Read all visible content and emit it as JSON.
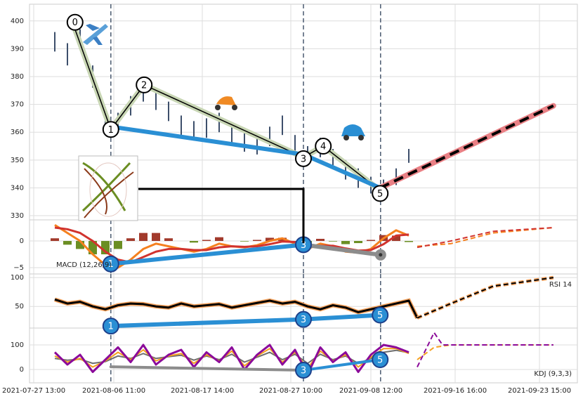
{
  "chart_data": [
    {
      "type": "ohlc",
      "xlim": [
        0,
        130
      ],
      "ylim": [
        328.5,
        406
      ],
      "xticks": [
        {
          "value": 1,
          "label": "2021-07-27 13:00"
        },
        {
          "value": 20,
          "label": "2021-08-06 11:00"
        },
        {
          "value": 41,
          "label": "2021-08-17 14:00"
        },
        {
          "value": 62,
          "label": "2021-08-27 10:00"
        },
        {
          "value": 81,
          "label": "2021-09-08 12:00"
        },
        {
          "value": 101,
          "label": "2021-09-16 16:00"
        },
        {
          "value": 121,
          "label": "2021-09-23 15:00"
        }
      ],
      "yticks": [
        330,
        340,
        350,
        360,
        370,
        380,
        390,
        400
      ],
      "vlines": [
        19.3,
        65,
        83.3
      ],
      "color": "#3d4f6b",
      "x": [
        6,
        9,
        12,
        15,
        18,
        21,
        24,
        27,
        30,
        33,
        36,
        39,
        42,
        45,
        48,
        51,
        54,
        57,
        60,
        63,
        66,
        69,
        72,
        75,
        78,
        81,
        84,
        87,
        90
      ],
      "high": [
        396,
        392,
        397,
        384,
        369,
        367,
        373,
        378,
        375,
        371,
        366,
        364,
        365,
        367,
        363,
        360,
        359,
        362,
        366,
        359,
        355,
        358,
        354,
        350,
        347,
        344,
        343,
        347,
        354
      ],
      "low": [
        389,
        384,
        390,
        376,
        362,
        360,
        366,
        371,
        368,
        364,
        359,
        357,
        358,
        360,
        356,
        353,
        352,
        355,
        359,
        352,
        348,
        351,
        347,
        343,
        340,
        338,
        337,
        341,
        349
      ],
      "lines": [
        {
          "color": "#c8d6b4",
          "width": 8,
          "inner": "#000000",
          "x": [
            10.8,
            19.3,
            27.2,
            65,
            69.7,
            83.2
          ],
          "y": [
            397,
            361,
            377,
            351,
            355,
            339
          ]
        },
        {
          "color": "#2a8fd4",
          "width": 6,
          "x": [
            19.3,
            65,
            83.2
          ],
          "y": [
            362,
            352,
            340
          ]
        },
        {
          "color": "#e98085",
          "width": 8,
          "inner": "#000000",
          "inner_dash": true,
          "x": [
            83.2,
            124.3
          ],
          "y": [
            340,
            369.5
          ]
        }
      ],
      "markers": [
        {
          "label": "0",
          "x": 10.8,
          "y": 399.5,
          "fill": "#ffffff",
          "stroke": "#000000"
        },
        {
          "label": "1",
          "x": 19.3,
          "y": 361,
          "fill": "#ffffff",
          "stroke": "#000000"
        },
        {
          "label": "2",
          "x": 27.2,
          "y": 377,
          "fill": "#ffffff",
          "stroke": "#000000"
        },
        {
          "label": "3",
          "x": 65,
          "y": 350.5,
          "fill": "#ffffff",
          "stroke": "#000000"
        },
        {
          "label": "4",
          "x": 69.7,
          "y": 355,
          "fill": "#ffffff",
          "stroke": "#000000"
        },
        {
          "label": "5",
          "x": 83.2,
          "y": 338,
          "fill": "#ffffff",
          "stroke": "#000000"
        }
      ]
    },
    {
      "type": "indicator",
      "label": "MACD (12,26,9)",
      "label_corner": "lower left",
      "ylim": [
        -6.18,
        3.95
      ],
      "yticks": [
        0,
        {
          "value": -5,
          "label": "−5"
        }
      ],
      "bars": {
        "x": [
          6,
          9,
          12,
          15,
          18,
          21,
          24,
          27,
          30,
          33,
          36,
          39,
          42,
          45,
          48,
          51,
          54,
          57,
          60,
          63,
          66,
          69,
          72,
          75,
          78,
          81,
          84,
          87,
          90
        ],
        "values": [
          0.5,
          -0.7,
          -1.5,
          -2.5,
          -2.5,
          -1.5,
          0.5,
          1.5,
          1.5,
          0.5,
          0,
          -0.3,
          0.2,
          0.7,
          0,
          -0.1,
          0.2,
          0.6,
          0.6,
          -0.3,
          -0.7,
          0.4,
          -0.1,
          -0.6,
          -0.4,
          0.2,
          1.1,
          1,
          -0.2
        ],
        "up_color": "#a23a2c",
        "down_color": "#6b8e23"
      },
      "series": [
        {
          "color": "#f5801e",
          "width": 3,
          "x": [
            6,
            9,
            12,
            15,
            18,
            21,
            24,
            27,
            30,
            33,
            36,
            39,
            42,
            45,
            48,
            51,
            54,
            57,
            60,
            63,
            66,
            69,
            72,
            75,
            78,
            81,
            84,
            87,
            90
          ],
          "values": [
            3,
            1.5,
            0,
            -2.5,
            -4.5,
            -5,
            -3.5,
            -1.5,
            -0.5,
            -1,
            -1.5,
            -2,
            -1.5,
            -0.5,
            -1,
            -1.2,
            -0.8,
            0,
            0.5,
            -0.5,
            -1.5,
            -0.5,
            -1,
            -2,
            -2.2,
            -1.5,
            0.5,
            2,
            1
          ]
        },
        {
          "color": "#d1332e",
          "width": 3,
          "x": [
            6,
            9,
            12,
            15,
            18,
            21,
            24,
            27,
            30,
            33,
            36,
            39,
            42,
            45,
            48,
            51,
            54,
            57,
            60,
            63,
            66,
            69,
            72,
            75,
            78,
            81,
            84,
            87,
            90
          ],
          "values": [
            2.5,
            2.2,
            1.5,
            0,
            -2,
            -3.5,
            -4,
            -3,
            -2,
            -1.5,
            -1.5,
            -1.7,
            -1.7,
            -1.2,
            -1,
            -1.1,
            -1,
            -0.6,
            -0.1,
            -0.2,
            -0.8,
            -0.9,
            -0.9,
            -1.4,
            -1.8,
            -1.7,
            -0.6,
            1,
            1.2
          ]
        },
        {
          "color": "#f5801e",
          "width": 2,
          "dash": true,
          "x": [
            92,
            100,
            110,
            124.3
          ],
          "values": [
            -1,
            -0.5,
            1.5,
            2.5
          ]
        },
        {
          "color": "#d1332e",
          "width": 2,
          "dash": true,
          "x": [
            92,
            100,
            110,
            124.3
          ],
          "values": [
            -1.2,
            0,
            1.8,
            2.5
          ]
        }
      ],
      "lines": [
        {
          "color": "#2a8fd4",
          "width": 6,
          "x": [
            19.3,
            65
          ],
          "y": [
            -4.3,
            -0.7
          ]
        },
        {
          "color": "#8c8c8c",
          "width": 6,
          "x": [
            65,
            83.3
          ],
          "y": [
            -0.7,
            -2.6
          ]
        }
      ],
      "markers": [
        {
          "label": "1",
          "x": 19.3,
          "y": -4.3,
          "fill": "#2a8fd4",
          "stroke": "#1c3f8a"
        },
        {
          "label": "3",
          "x": 65,
          "y": -0.7,
          "fill": "#2a8fd4",
          "stroke": "#1c3f8a"
        },
        {
          "x": 83.3,
          "y": -2.6,
          "fill": "#8c8c8c",
          "stroke": "#8c8c8c",
          "dot": true
        }
      ]
    },
    {
      "type": "indicator",
      "label": "RSI 14",
      "label_corner": "upper right",
      "ylim": [
        12.5,
        106.25
      ],
      "yticks": [
        50,
        100
      ],
      "series": [
        {
          "color": "#000000",
          "halo": "#f5a25d",
          "width": 3,
          "x": [
            6,
            9,
            12,
            15,
            18,
            21,
            24,
            27,
            30,
            33,
            36,
            39,
            42,
            45,
            48,
            51,
            54,
            57,
            60,
            63,
            66,
            69,
            72,
            75,
            78,
            81,
            84,
            87,
            90,
            92
          ],
          "values": [
            62,
            55,
            58,
            50,
            45,
            52,
            55,
            54,
            50,
            48,
            55,
            50,
            52,
            54,
            48,
            52,
            56,
            60,
            55,
            58,
            50,
            45,
            52,
            48,
            40,
            45,
            50,
            55,
            60,
            30
          ]
        },
        {
          "color": "#000000",
          "halo": "#f5a25d",
          "width": 2,
          "dash": true,
          "x": [
            92,
            100,
            110,
            124.3
          ],
          "values": [
            30,
            55,
            85,
            100
          ]
        }
      ],
      "lines": [
        {
          "color": "#2a8fd4",
          "width": 6,
          "x": [
            19.3,
            65,
            83.2
          ],
          "y": [
            16,
            27.5,
            35
          ]
        }
      ],
      "markers": [
        {
          "label": "1",
          "x": 19.3,
          "y": 16,
          "fill": "#2a8fd4",
          "stroke": "#1c3f8a"
        },
        {
          "label": "3",
          "x": 65,
          "y": 27.5,
          "fill": "#2a8fd4",
          "stroke": "#1c3f8a"
        },
        {
          "label": "5",
          "x": 83.2,
          "y": 35,
          "fill": "#2a8fd4",
          "stroke": "#1c3f8a"
        }
      ]
    },
    {
      "type": "indicator",
      "label": "KDJ (9,3,3)",
      "label_corner": "lower right",
      "ylim": [
        -54.3,
        168.6
      ],
      "yticks": [
        0,
        100
      ],
      "series": [
        {
          "color": "#6e6e6e",
          "width": 2,
          "x": [
            6,
            9,
            12,
            15,
            18,
            21,
            24,
            27,
            30,
            33,
            36,
            39,
            42,
            45,
            48,
            51,
            54,
            57,
            60,
            63,
            66,
            69,
            72,
            75,
            78,
            81,
            84,
            87,
            90
          ],
          "values": [
            45,
            38,
            42,
            25,
            32,
            55,
            45,
            65,
            45,
            52,
            58,
            38,
            55,
            40,
            62,
            30,
            50,
            70,
            40,
            62,
            25,
            62,
            40,
            55,
            25,
            45,
            70,
            78,
            68
          ]
        },
        {
          "color": "#f5a020",
          "width": 2,
          "x": [
            6,
            9,
            12,
            15,
            18,
            21,
            24,
            27,
            30,
            33,
            36,
            39,
            42,
            45,
            48,
            51,
            54,
            57,
            60,
            63,
            66,
            69,
            72,
            75,
            78,
            81,
            84,
            87,
            90
          ],
          "values": [
            55,
            30,
            45,
            10,
            35,
            70,
            40,
            80,
            35,
            55,
            65,
            25,
            60,
            35,
            75,
            15,
            55,
            85,
            30,
            70,
            5,
            75,
            35,
            60,
            10,
            50,
            85,
            85,
            65
          ]
        },
        {
          "color": "#8b0a9a",
          "width": 3,
          "x": [
            6,
            9,
            12,
            15,
            18,
            21,
            24,
            27,
            30,
            33,
            36,
            39,
            42,
            45,
            48,
            51,
            54,
            57,
            60,
            63,
            66,
            69,
            72,
            75,
            78,
            81,
            84,
            87,
            90
          ],
          "values": [
            70,
            20,
            60,
            -10,
            40,
            90,
            30,
            100,
            20,
            60,
            80,
            10,
            70,
            30,
            90,
            0,
            60,
            100,
            20,
            80,
            -20,
            90,
            30,
            70,
            -10,
            60,
            100,
            90,
            70
          ]
        },
        {
          "color": "#f5a020",
          "width": 2,
          "dash": true,
          "x": [
            92,
            96,
            100,
            124.3
          ],
          "values": [
            40,
            90,
            100,
            100
          ]
        },
        {
          "color": "#8b0a9a",
          "width": 2,
          "dash": true,
          "x": [
            92,
            96,
            98,
            124.3
          ],
          "values": [
            10,
            150,
            100,
            100
          ]
        }
      ],
      "lines": [
        {
          "color": "#8c8c8c",
          "width": 4,
          "x": [
            19.3,
            65
          ],
          "y": [
            11,
            -3
          ]
        },
        {
          "color": "#2a8fd4",
          "width": 4,
          "x": [
            65,
            83.2
          ],
          "y": [
            -3,
            40
          ]
        }
      ],
      "markers": [
        {
          "label": "3",
          "x": 65,
          "y": -3,
          "fill": "#2a8fd4",
          "stroke": "#1c3f8a"
        },
        {
          "label": "5",
          "x": 83.2,
          "y": 40,
          "fill": "#2a8fd4",
          "stroke": "#1c3f8a"
        }
      ]
    }
  ]
}
